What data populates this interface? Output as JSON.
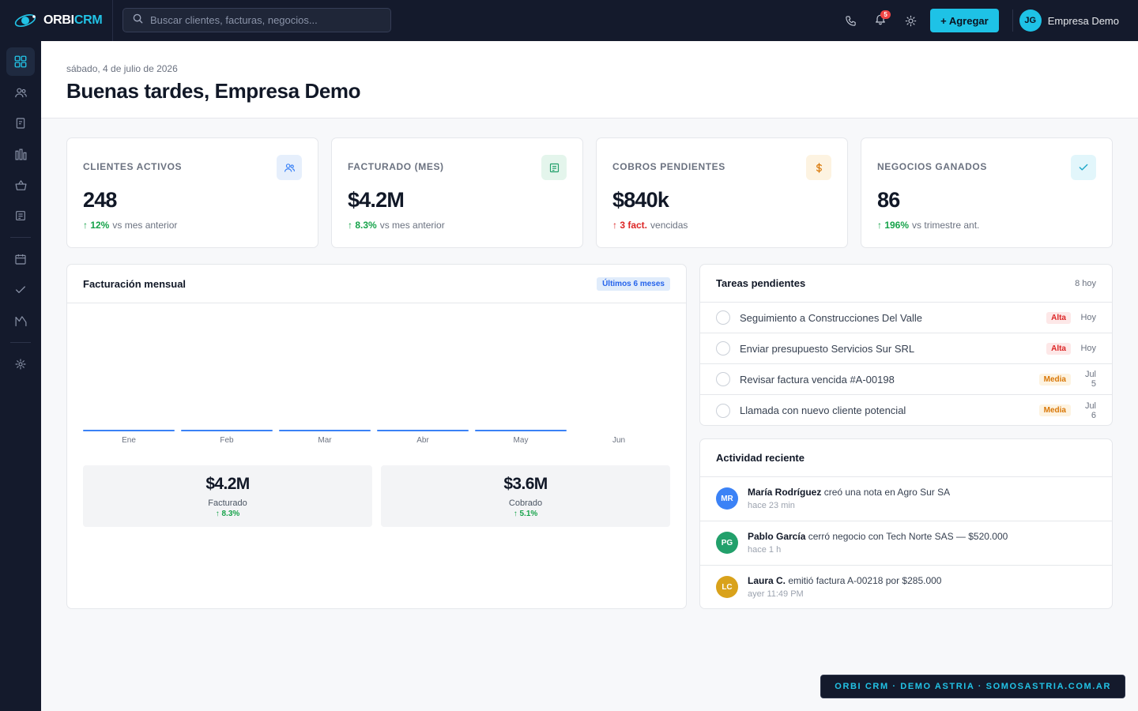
{
  "brand": {
    "name_part1": "ORBI",
    "name_part2": "CRM"
  },
  "search": {
    "placeholder": "Buscar clientes, facturas, negocios..."
  },
  "topbar": {
    "notifications_count": "5",
    "add_label": "+ Agregar",
    "user_initials": "JG",
    "user_name": "Empresa Demo"
  },
  "header": {
    "date": "sábado, 4 de julio de 2026",
    "greeting": "Buenas tardes, Empresa Demo"
  },
  "kpis": [
    {
      "label": "CLIENTES ACTIVOS",
      "value": "248",
      "delta": "↑ 12%",
      "note": "vs mes anterior"
    },
    {
      "label": "FACTURADO (MES)",
      "value": "$4.2M",
      "delta": "↑ 8.3%",
      "note": "vs mes anterior"
    },
    {
      "label": "COBROS PENDIENTES",
      "value": "$840k",
      "delta": "↑ 3 fact.",
      "note": "vencidas"
    },
    {
      "label": "NEGOCIOS GANADOS",
      "value": "86",
      "delta": "↑ 196%",
      "note": "vs trimestre ant."
    }
  ],
  "chart_panel": {
    "title": "Facturación mensual",
    "range_pill": "Últimos 6 meses",
    "summary": [
      {
        "value": "$4.2M",
        "label": "Facturado",
        "delta": "↑ 8.3%"
      },
      {
        "value": "$3.6M",
        "label": "Cobrado",
        "delta": "↑ 5.1%"
      }
    ]
  },
  "chart_data": {
    "type": "bar",
    "categories": [
      "Ene",
      "Feb",
      "Mar",
      "Abr",
      "May",
      "Jun"
    ],
    "values": [
      0,
      0,
      0,
      0,
      0,
      null
    ],
    "title": "Facturación mensual",
    "color": "#3b82f6"
  },
  "tasks_panel": {
    "title": "Tareas pendientes",
    "count_label": "8 hoy",
    "items": [
      {
        "text": "Seguimiento a Construcciones Del Valle",
        "priority": "Alta",
        "due": "Hoy"
      },
      {
        "text": "Enviar presupuesto Servicios Sur SRL",
        "priority": "Alta",
        "due": "Hoy"
      },
      {
        "text": "Revisar factura vencida #A-00198",
        "priority": "Media",
        "due": "Jul 5"
      },
      {
        "text": "Llamada con nuevo cliente potencial",
        "priority": "Media",
        "due": "Jul 6"
      }
    ]
  },
  "activity_panel": {
    "title": "Actividad reciente",
    "items": [
      {
        "initials": "MR",
        "color": "#3b82f6",
        "who": "María Rodríguez",
        "what": " creó una nota en Agro Sur SA",
        "when": "hace 23 min"
      },
      {
        "initials": "PG",
        "color": "#22a06b",
        "who": "Pablo García",
        "what": " cerró negocio con Tech Norte SAS — $520.000",
        "when": "hace 1 h"
      },
      {
        "initials": "LC",
        "color": "#d9a21b",
        "who": "Laura C.",
        "what": " emitió factura A-00218 por $285.000",
        "when": "ayer 11:49 PM"
      }
    ]
  },
  "footer": {
    "tag": "ORBI CRM · DEMO ASTRIA · SOMOSASTRIA.COM.AR"
  },
  "colors": {
    "accent": "#1ec2e6",
    "sidebar": "#141a2c",
    "success": "#16a34a",
    "danger": "#dc2626",
    "warning": "#d97706"
  }
}
